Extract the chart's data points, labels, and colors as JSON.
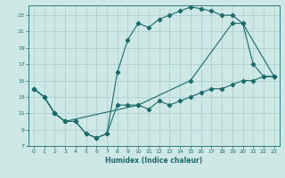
{
  "title": "",
  "xlabel": "Humidex (Indice chaleur)",
  "bg_color": "#cde8e5",
  "line_color": "#1a6b6b",
  "grid_color": "#a8ccca",
  "xlim": [
    -0.5,
    23.5
  ],
  "ylim": [
    7,
    24.2
  ],
  "xticks": [
    0,
    1,
    2,
    3,
    4,
    5,
    6,
    7,
    8,
    9,
    10,
    11,
    12,
    13,
    14,
    15,
    16,
    17,
    18,
    19,
    20,
    21,
    22,
    23
  ],
  "yticks": [
    7,
    9,
    11,
    13,
    15,
    17,
    19,
    21,
    23
  ],
  "line1_x": [
    0,
    1,
    2,
    3,
    4,
    5,
    6,
    7,
    8,
    9,
    10,
    11,
    12,
    13,
    14,
    15,
    16,
    17,
    18,
    19,
    20,
    21,
    22,
    23
  ],
  "line1_y": [
    14,
    13,
    11,
    10,
    10,
    8.5,
    8.0,
    8.5,
    16,
    20,
    22,
    21.5,
    22.5,
    23,
    23.5,
    24,
    23.8,
    23.5,
    23,
    23,
    22,
    17,
    15.5,
    15.5
  ],
  "line2_x": [
    0,
    1,
    2,
    3,
    4,
    5,
    6,
    7,
    8,
    9,
    10,
    11,
    12,
    13,
    14,
    15,
    16,
    17,
    18,
    19,
    20,
    21,
    22,
    23
  ],
  "line2_y": [
    14,
    13,
    11,
    10,
    10,
    8.5,
    8.0,
    8.5,
    12,
    12,
    12,
    11.5,
    12.5,
    12,
    12.5,
    13,
    13.5,
    14,
    14,
    14.5,
    15,
    15,
    15.5,
    15.5
  ],
  "line3_x": [
    0,
    1,
    2,
    3,
    10,
    15,
    19,
    20,
    23
  ],
  "line3_y": [
    14,
    13,
    11,
    10,
    12,
    15,
    22,
    22,
    15.5
  ]
}
